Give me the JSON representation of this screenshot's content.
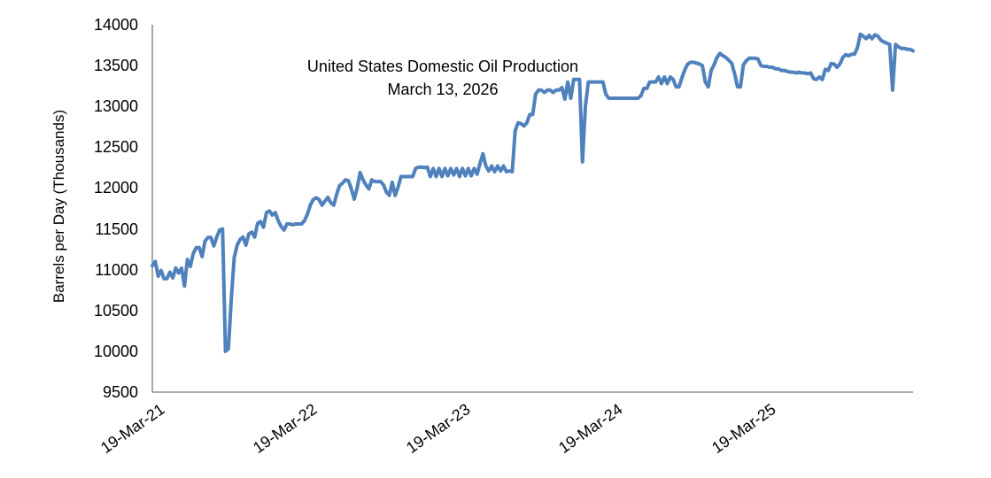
{
  "chart_data": {
    "type": "line",
    "title": "United States Domestic Oil Production",
    "subtitle": "March 13, 2026",
    "ylabel": "Barrels per Day (Thousands)",
    "xlabel": "",
    "x_unit": "weekly",
    "x_tick_labels": [
      "19-Mar-21",
      "19-Mar-22",
      "19-Mar-23",
      "19-Mar-24",
      "19-Mar-25"
    ],
    "x_tick_week_positions": [
      0,
      52.18,
      104.36,
      156.54,
      208.71
    ],
    "y_ticks": [
      9500,
      10000,
      10500,
      11000,
      11500,
      12000,
      12500,
      13000,
      13500,
      14000
    ],
    "ylim": [
      9500,
      14000
    ],
    "grid": false,
    "legend": "none",
    "line_color": "#4F81BD",
    "axis_color": "#8F8F8F",
    "text_color": "#000000",
    "series": [
      {
        "name": "US domestic oil production (thousand barrels per day)",
        "values": [
          11050,
          11100,
          10920,
          10990,
          10890,
          10890,
          10970,
          10900,
          11020,
          10960,
          11020,
          10800,
          11125,
          11040,
          11200,
          11270,
          11270,
          11160,
          11350,
          11395,
          11395,
          11290,
          11400,
          11485,
          11500,
          10000,
          10030,
          10650,
          11150,
          11300,
          11370,
          11400,
          11300,
          11440,
          11460,
          11400,
          11570,
          11590,
          11520,
          11700,
          11720,
          11670,
          11700,
          11600,
          11530,
          11485,
          11560,
          11560,
          11550,
          11560,
          11560,
          11560,
          11600,
          11680,
          11790,
          11860,
          11880,
          11860,
          11790,
          11840,
          11885,
          11820,
          11790,
          11920,
          12030,
          12060,
          12100,
          12090,
          11990,
          11865,
          12000,
          12190,
          12100,
          12040,
          11990,
          12100,
          12080,
          12080,
          12080,
          12040,
          11950,
          11910,
          12070,
          11910,
          12010,
          12140,
          12140,
          12140,
          12140,
          12140,
          12240,
          12255,
          12255,
          12250,
          12255,
          12140,
          12240,
          12140,
          12240,
          12140,
          12240,
          12150,
          12240,
          12160,
          12240,
          12140,
          12240,
          12150,
          12240,
          12150,
          12240,
          12170,
          12300,
          12420,
          12270,
          12210,
          12270,
          12200,
          12270,
          12210,
          12270,
          12200,
          12210,
          12200,
          12700,
          12800,
          12790,
          12760,
          12800,
          12900,
          12900,
          13150,
          13200,
          13200,
          13170,
          13200,
          13200,
          13170,
          13200,
          13200,
          13230,
          13090,
          13300,
          13100,
          13330,
          13330,
          13330,
          12320,
          13000,
          13300,
          13300,
          13300,
          13300,
          13300,
          13300,
          13150,
          13100,
          13100,
          13100,
          13100,
          13100,
          13100,
          13100,
          13100,
          13100,
          13100,
          13100,
          13130,
          13220,
          13220,
          13300,
          13300,
          13300,
          13360,
          13280,
          13360,
          13280,
          13360,
          13330,
          13240,
          13240,
          13350,
          13450,
          13520,
          13540,
          13540,
          13530,
          13520,
          13500,
          13300,
          13240,
          13440,
          13510,
          13600,
          13650,
          13620,
          13600,
          13565,
          13530,
          13400,
          13240,
          13240,
          13510,
          13560,
          13590,
          13590,
          13590,
          13580,
          13500,
          13490,
          13490,
          13480,
          13480,
          13460,
          13460,
          13440,
          13440,
          13430,
          13420,
          13420,
          13410,
          13420,
          13410,
          13410,
          13400,
          13410,
          13340,
          13330,
          13360,
          13330,
          13455,
          13440,
          13525,
          13520,
          13480,
          13520,
          13600,
          13635,
          13620,
          13640,
          13640,
          13720,
          13885,
          13860,
          13830,
          13870,
          13830,
          13877,
          13860,
          13810,
          13790,
          13775,
          13760,
          13200,
          13760,
          13730,
          13710,
          13710,
          13700,
          13700,
          13680
        ]
      }
    ]
  }
}
